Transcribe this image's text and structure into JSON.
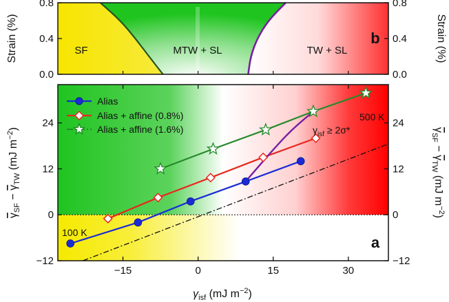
{
  "chart_data": [
    {
      "panel": "b",
      "type": "area",
      "ylabel": "Strain (%)",
      "ylim": [
        0,
        0.8
      ],
      "yticks": [
        0.0,
        0.4,
        0.8
      ],
      "xlim": [
        -28,
        38
      ],
      "regions": [
        "SF",
        "MTW + SL",
        "TW + SL"
      ],
      "boundaries": [
        {
          "name": "SF / MTW+SL",
          "color": "#22551f",
          "points": [
            [
              -19.5,
              0.8
            ],
            [
              -15.5,
              0.6
            ],
            [
              -12.5,
              0.4
            ],
            [
              -9.8,
              0.2
            ],
            [
              -7.0,
              0.0
            ]
          ]
        },
        {
          "name": "MTW+SL / TW+SL",
          "color": "#7a1fa0",
          "points": [
            [
              10.0,
              0.0
            ],
            [
              10.5,
              0.2
            ],
            [
              11.8,
              0.4
            ],
            [
              14.0,
              0.6
            ],
            [
              17.5,
              0.8
            ]
          ]
        }
      ]
    },
    {
      "panel": "a",
      "type": "line",
      "xlabel": "γisf (mJ m−2)",
      "ylabel": "γSF − γTW (mJ m−2)",
      "xlim": [
        -28,
        38
      ],
      "ylim": [
        -12,
        34
      ],
      "xticks": [
        -15,
        0,
        15,
        30
      ],
      "yticks": [
        -12,
        0,
        12,
        24
      ],
      "series": [
        {
          "name": "Alias",
          "color": "#1a2bd6",
          "marker": "circle",
          "x": [
            -25.5,
            -12.0,
            -1.5,
            9.5,
            20.5
          ],
          "y": [
            -7.5,
            -2.0,
            3.5,
            8.7,
            14.0
          ]
        },
        {
          "name": "Alias + affine (0.8%)",
          "color": "#e8271e",
          "marker": "diamond",
          "x": [
            -18.0,
            -8.0,
            2.5,
            13.0,
            23.5
          ],
          "y": [
            -1.0,
            4.5,
            9.7,
            15.0,
            20.0
          ]
        },
        {
          "name": "Alias + affine (1.6%)",
          "color": "#238a2a",
          "marker": "star",
          "x": [
            -7.5,
            3.0,
            13.5,
            23.0,
            33.5
          ],
          "y": [
            12.0,
            17.2,
            22.2,
            27.0,
            31.8
          ]
        },
        {
          "name": "reference",
          "color": "#111111",
          "style": "dash-dot",
          "x": [
            -23.0,
            38.0
          ],
          "y": [
            -12.0,
            18.5
          ]
        },
        {
          "name": "γisf ≥ 2σ*",
          "color": "#7a1fa0",
          "style": "solid",
          "x": [
            9.5,
            12.0,
            15.0,
            18.5,
            23.0
          ],
          "y": [
            8.7,
            12.5,
            17.0,
            22.0,
            27.0
          ]
        }
      ],
      "annotations": [
        "100 K",
        "500 K",
        "γisf ≥ 2σ*"
      ],
      "legend": "top-left"
    }
  ],
  "labels": {
    "panel_a": "a",
    "panel_b": "b",
    "strain_label": "Strain (%)",
    "region_sf": "SF",
    "region_mtw": "MTW + SL",
    "region_tw": "TW + SL",
    "x_axis_base": "γ",
    "x_axis_sub": "isf",
    "x_axis_unit": " (mJ m",
    "x_axis_exp": "−2",
    "x_axis_close": ")",
    "y_axis_base1": "γ",
    "y_axis_sub1": "SF",
    "y_axis_minus": " − ",
    "y_axis_base2": "γ",
    "y_axis_sub2": "TW",
    "y_axis_unit": " (mJ m",
    "y_axis_exp": "−2",
    "y_axis_close": ")",
    "ann_100k": "100 K",
    "ann_500k": "500 K",
    "ann_gamma": "γ",
    "ann_gamma_sub": "isf",
    "ann_ge": " ≥ 2σ*"
  },
  "ticks": {
    "b_y": [
      "0.8",
      "0.4",
      "0.0"
    ],
    "a_y": [
      "24",
      "12",
      "0",
      "−12"
    ],
    "a_x": [
      "−15",
      "0",
      "15",
      "30"
    ]
  }
}
